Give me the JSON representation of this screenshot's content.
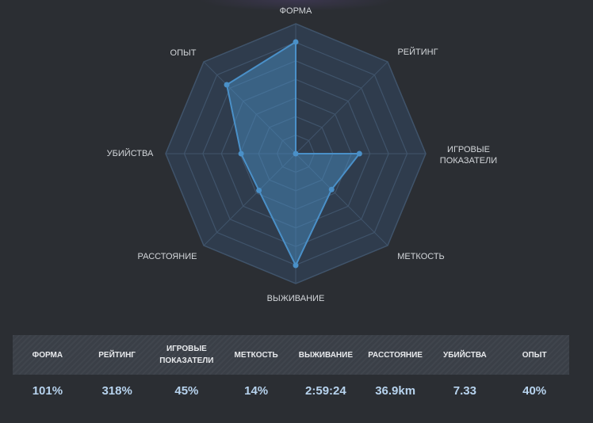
{
  "colors": {
    "background": "#2b2e33",
    "grid_fill": "#2f3c4d",
    "grid_stroke": "#40546b",
    "series": "#4a90c8",
    "label_text": "#d3d6da",
    "value_text": "#b7d3ee"
  },
  "chart_data": {
    "type": "radar",
    "axes": [
      "ФОРМА",
      "РЕЙТИНГ",
      "ИГРОВЫЕ\nПОКАЗАТЕЛИ",
      "МЕТКОСТЬ",
      "ВЫЖИВАНИЕ",
      "РАССТОЯНИЕ",
      "УБИЙСТВА",
      "ОПЫТ"
    ],
    "grid_levels": 7,
    "range": [
      0,
      1
    ],
    "values": [
      0.86,
      0.0,
      0.49,
      0.39,
      0.86,
      0.4,
      0.42,
      0.75
    ]
  },
  "stats": {
    "headers": [
      "ФОРМА",
      "РЕЙТИНГ",
      "ИГРОВЫЕ ПОКАЗАТЕЛИ",
      "МЕТКОСТЬ",
      "ВЫЖИВАНИЕ",
      "РАССТОЯНИЕ",
      "УБИЙСТВА",
      "ОПЫТ"
    ],
    "values": [
      "101%",
      "318%",
      "45%",
      "14%",
      "2:59:24",
      "36.9km",
      "7.33",
      "40%"
    ]
  }
}
